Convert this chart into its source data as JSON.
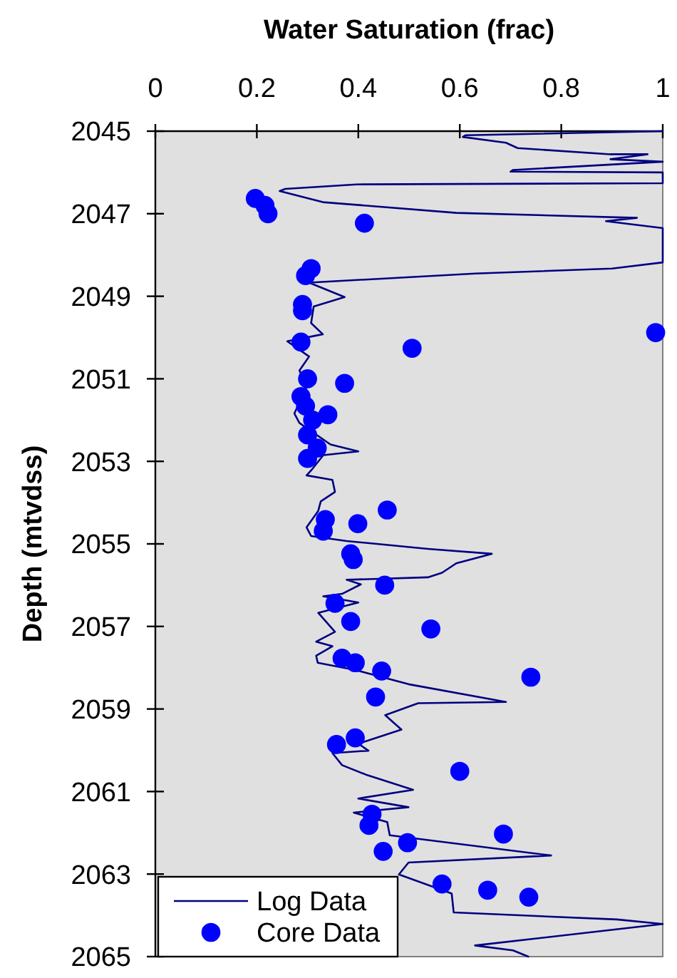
{
  "chart_data": {
    "type": "line",
    "xlabel": "Water Saturation (frac)",
    "ylabel": "Depth (mtvdss)",
    "xlim": [
      0,
      1
    ],
    "xticks": [
      0,
      0.2,
      0.4,
      0.6,
      0.8,
      1
    ],
    "ylim": [
      2065,
      2045
    ],
    "yticks": [
      2045,
      2047,
      2049,
      2051,
      2053,
      2055,
      2057,
      2059,
      2061,
      2063,
      2065
    ],
    "legend": "bottom left",
    "series": [
      {
        "name": "Log Data",
        "color": "#000080",
        "line_style": "solid",
        "x": [
          1.0,
          0.611,
          0.606,
          0.691,
          0.714,
          0.897,
          0.97,
          0.897,
          1.0,
          0.705,
          0.7,
          1.0,
          1.0,
          0.396,
          0.256,
          0.245,
          0.33,
          0.593,
          0.949,
          0.888,
          1.0,
          1.0,
          0.9,
          0.63,
          0.303,
          0.373,
          0.312,
          0.307,
          0.33,
          0.26,
          0.303,
          0.284,
          0.298,
          0.274,
          0.284,
          0.345,
          0.4,
          0.331,
          0.307,
          0.298,
          0.349,
          0.354,
          0.326,
          0.321,
          0.298,
          0.307,
          0.377,
          0.537,
          0.663,
          0.593,
          0.565,
          0.537,
          0.377,
          0.405,
          0.368,
          0.331,
          0.4,
          0.321,
          0.354,
          0.317,
          0.349,
          0.317,
          0.32,
          0.396,
          0.499,
          0.691,
          0.518,
          0.453,
          0.485,
          0.4,
          0.42,
          0.349,
          0.368,
          0.415,
          0.508,
          0.4,
          0.499,
          0.391,
          0.457,
          0.462,
          0.78,
          0.499,
          0.48,
          0.584,
          0.588,
          0.91,
          1.0,
          0.63,
          0.705,
          0.735
        ],
        "values": [
          2045.0,
          2045.1,
          2045.14,
          2045.28,
          2045.41,
          2045.56,
          2045.56,
          2045.68,
          2045.74,
          2045.94,
          2045.98,
          2046.0,
          2046.26,
          2046.29,
          2046.4,
          2046.45,
          2046.72,
          2046.98,
          2047.1,
          2047.18,
          2047.35,
          2048.18,
          2048.33,
          2048.45,
          2048.67,
          2049.02,
          2049.25,
          2049.65,
          2049.92,
          2050.09,
          2050.46,
          2050.8,
          2051.2,
          2051.84,
          2052.07,
          2052.59,
          2052.76,
          2052.85,
          2053.22,
          2053.34,
          2053.45,
          2053.74,
          2053.97,
          2054.2,
          2054.6,
          2054.81,
          2054.93,
          2055.12,
          2055.24,
          2055.47,
          2055.7,
          2055.81,
          2055.87,
          2055.98,
          2056.21,
          2056.27,
          2056.42,
          2056.67,
          2057.13,
          2057.37,
          2057.48,
          2057.71,
          2057.88,
          2058.06,
          2058.4,
          2058.83,
          2058.86,
          2059.15,
          2059.5,
          2059.84,
          2060.01,
          2060.07,
          2060.36,
          2060.59,
          2060.96,
          2061.17,
          2061.38,
          2061.51,
          2061.74,
          2062.06,
          2062.55,
          2062.72,
          2063.01,
          2063.47,
          2063.93,
          2064.1,
          2064.21,
          2064.73,
          2064.85,
          2065.0
        ]
      },
      {
        "name": "Core Data",
        "type": "scatter",
        "color": "#0000ff",
        "marker": "circle",
        "x": [
          0.197,
          0.216,
          0.222,
          0.412,
          0.307,
          0.296,
          0.29,
          0.29,
          0.287,
          0.506,
          0.986,
          0.3,
          0.373,
          0.287,
          0.296,
          0.34,
          0.31,
          0.3,
          0.319,
          0.3,
          0.457,
          0.335,
          0.399,
          0.331,
          0.385,
          0.39,
          0.452,
          0.354,
          0.385,
          0.543,
          0.368,
          0.394,
          0.446,
          0.74,
          0.434,
          0.394,
          0.357,
          0.6,
          0.427,
          0.421,
          0.686,
          0.497,
          0.449,
          0.565,
          0.655,
          0.736
        ],
        "values": [
          2046.63,
          2046.8,
          2047.0,
          2047.23,
          2048.33,
          2048.5,
          2049.2,
          2049.35,
          2050.11,
          2050.26,
          2049.88,
          2051.0,
          2051.11,
          2051.43,
          2051.66,
          2051.87,
          2052.0,
          2052.36,
          2052.68,
          2052.93,
          2054.18,
          2054.41,
          2054.51,
          2054.69,
          2055.24,
          2055.38,
          2056.0,
          2056.44,
          2056.88,
          2057.06,
          2057.77,
          2057.88,
          2058.08,
          2058.23,
          2058.71,
          2059.7,
          2059.86,
          2060.51,
          2061.55,
          2061.82,
          2062.03,
          2062.24,
          2062.45,
          2063.24,
          2063.39,
          2063.56
        ]
      }
    ]
  }
}
